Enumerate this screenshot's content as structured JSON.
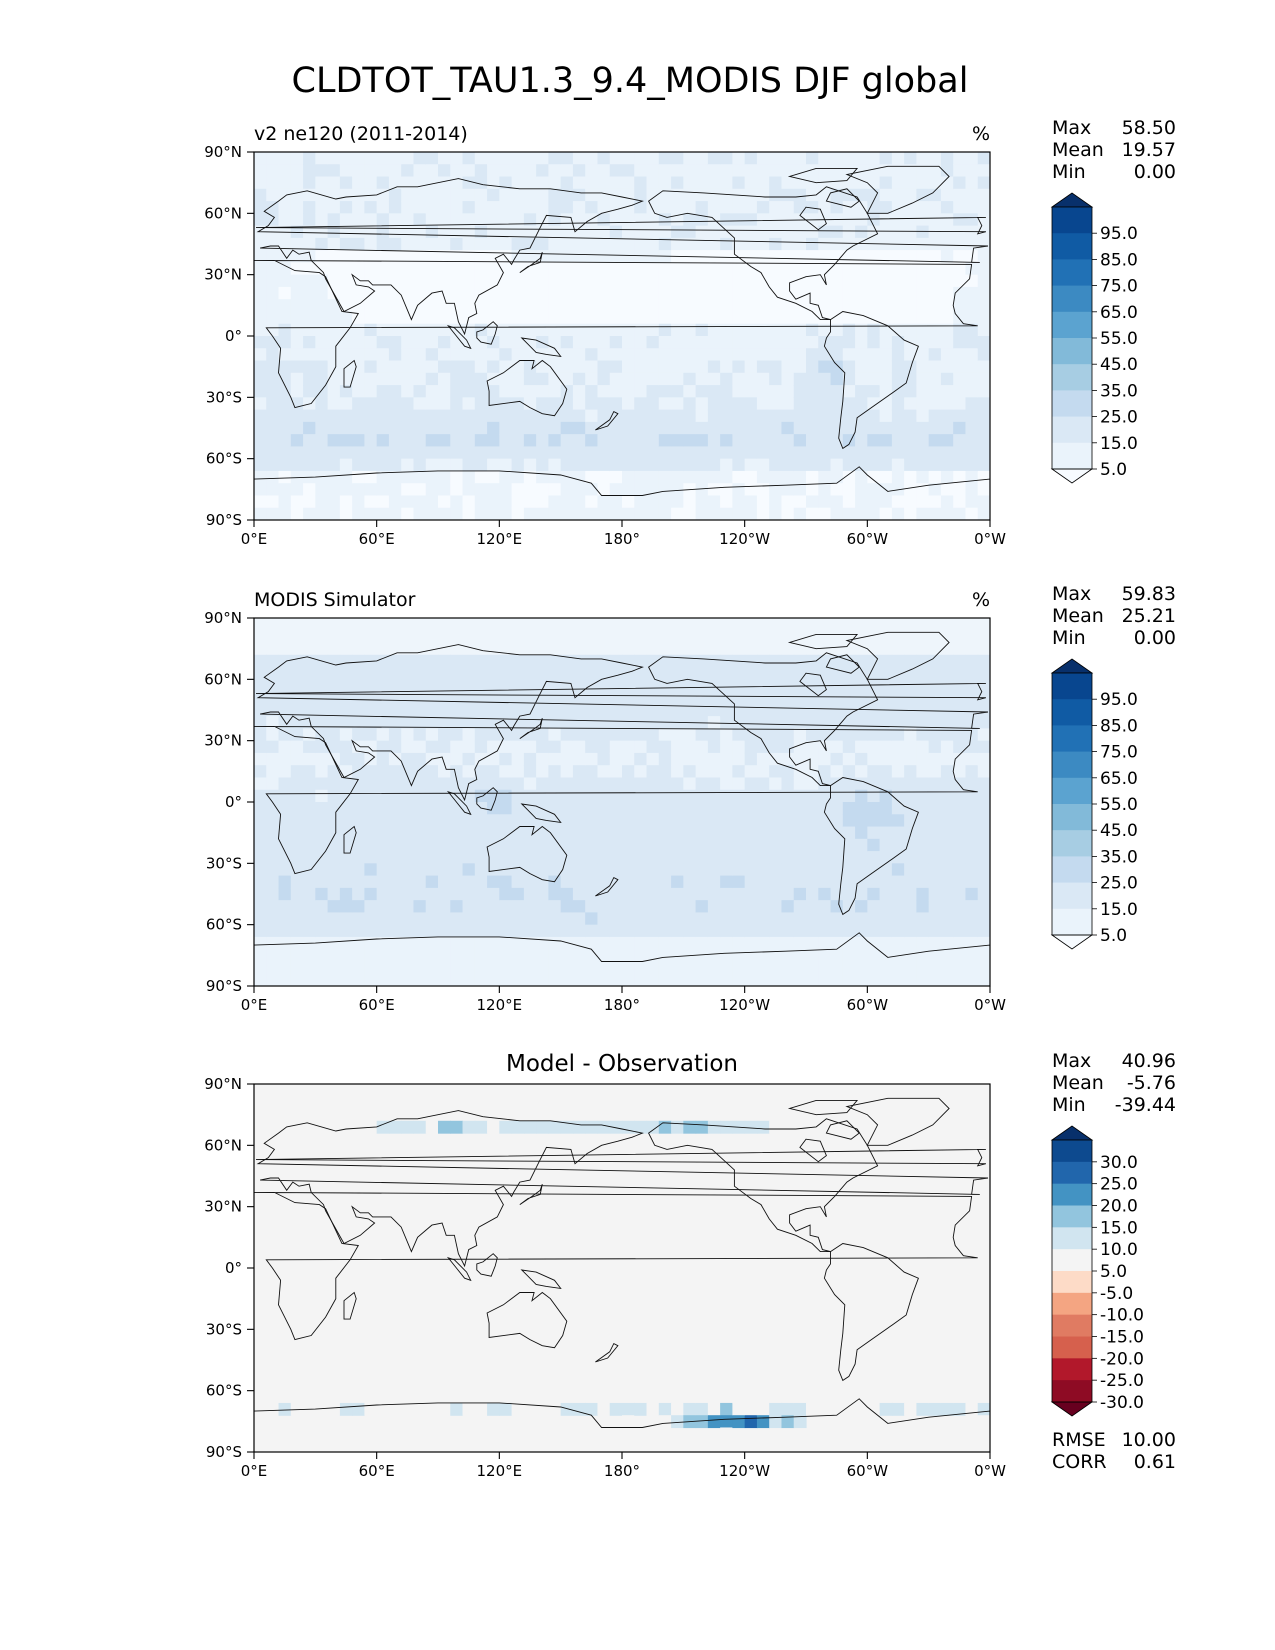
{
  "figure": {
    "title": "CLDTOT_TAU1.3_9.4_MODIS DJF global"
  },
  "chart_data": [
    {
      "type": "heatmap",
      "map": "filled contour map, plate carree projection, coastlines overlaid",
      "title_left": "v2 ne120 (2011-2014)",
      "title_right": "%",
      "x_tick_labels": [
        "0°E",
        "60°E",
        "120°E",
        "180°",
        "120°W",
        "60°W",
        "0°W"
      ],
      "y_tick_labels": [
        "90°N",
        "60°N",
        "30°N",
        "0°",
        "30°S",
        "60°S",
        "90°S"
      ],
      "xlim": [
        0,
        360
      ],
      "ylim": [
        -90,
        90
      ],
      "stats": [
        {
          "label": "Max",
          "value": "58.50"
        },
        {
          "label": "Mean",
          "value": "19.57"
        },
        {
          "label": "Min",
          "value": "0.00"
        }
      ],
      "colormap": "Blues",
      "colorbar_ticks": [
        "95.0",
        "85.0",
        "75.0",
        "65.0",
        "55.0",
        "45.0",
        "35.0",
        "25.0",
        "15.0",
        "5.0"
      ],
      "colorbar_colors": [
        "#08306b",
        "#08468f",
        "#105ba4",
        "#2171b5",
        "#3c8ac2",
        "#5ba3d0",
        "#82bad9",
        "#a7cde3",
        "#c4daef",
        "#dae8f5",
        "#eaf3fb",
        "#f7fbff"
      ],
      "field_palette": [
        "#f7fbff",
        "#eaf3fb",
        "#dae8f5",
        "#c4daef",
        "#a7cde3",
        "#82bad9",
        "#5ba3d0"
      ]
    },
    {
      "type": "heatmap",
      "map": "filled contour map, plate carree projection, coastlines overlaid",
      "title_left": "MODIS Simulator",
      "title_right": "%",
      "x_tick_labels": [
        "0°E",
        "60°E",
        "120°E",
        "180°",
        "120°W",
        "60°W",
        "0°W"
      ],
      "y_tick_labels": [
        "90°N",
        "60°N",
        "30°N",
        "0°",
        "30°S",
        "60°S",
        "90°S"
      ],
      "xlim": [
        0,
        360
      ],
      "ylim": [
        -90,
        90
      ],
      "stats": [
        {
          "label": "Max",
          "value": "59.83"
        },
        {
          "label": "Mean",
          "value": "25.21"
        },
        {
          "label": "Min",
          "value": "0.00"
        }
      ],
      "colormap": "Blues",
      "colorbar_ticks": [
        "95.0",
        "85.0",
        "75.0",
        "65.0",
        "55.0",
        "45.0",
        "35.0",
        "25.0",
        "15.0",
        "5.0"
      ],
      "colorbar_colors": [
        "#08306b",
        "#08468f",
        "#105ba4",
        "#2171b5",
        "#3c8ac2",
        "#5ba3d0",
        "#82bad9",
        "#a7cde3",
        "#c4daef",
        "#dae8f5",
        "#eaf3fb",
        "#f7fbff"
      ],
      "field_palette": [
        "#f7fbff",
        "#eaf3fb",
        "#dae8f5",
        "#c4daef",
        "#a7cde3",
        "#82bad9",
        "#5ba3d0"
      ]
    },
    {
      "type": "heatmap",
      "map": "filled contour difference map, plate carree projection, coastlines overlaid",
      "title_center": "Model - Observation",
      "x_tick_labels": [
        "0°E",
        "60°E",
        "120°E",
        "180°",
        "120°W",
        "60°W",
        "0°W"
      ],
      "y_tick_labels": [
        "90°N",
        "60°N",
        "30°N",
        "0°",
        "30°S",
        "60°S",
        "90°S"
      ],
      "xlim": [
        0,
        360
      ],
      "ylim": [
        -90,
        90
      ],
      "stats": [
        {
          "label": "Max",
          "value": "40.96"
        },
        {
          "label": "Mean",
          "value": "-5.76"
        },
        {
          "label": "Min",
          "value": "-39.44"
        }
      ],
      "extra_stats": [
        {
          "label": "RMSE",
          "value": "10.00"
        },
        {
          "label": "CORR",
          "value": "0.61"
        }
      ],
      "colormap": "RdBu_r",
      "colorbar_ticks": [
        "30.0",
        "25.0",
        "20.0",
        "15.0",
        "10.0",
        "5.0",
        "-5.0",
        "-10.0",
        "-15.0",
        "-20.0",
        "-25.0",
        "-30.0"
      ],
      "colorbar_colors": [
        "#08306b",
        "#0d4a8f",
        "#2166ac",
        "#4393c3",
        "#92c5de",
        "#d1e5f0",
        "#f4f4f4",
        "#fddbc7",
        "#f4a582",
        "#e07b62",
        "#d6604d",
        "#b2182b",
        "#8e0b24",
        "#67001f"
      ],
      "field_palette": [
        "#f4f4f4",
        "#fddbc7",
        "#f4a582",
        "#e07b62",
        "#d6604d",
        "#b2182b",
        "#d1e5f0",
        "#92c5de",
        "#4393c3",
        "#2166ac"
      ]
    }
  ]
}
